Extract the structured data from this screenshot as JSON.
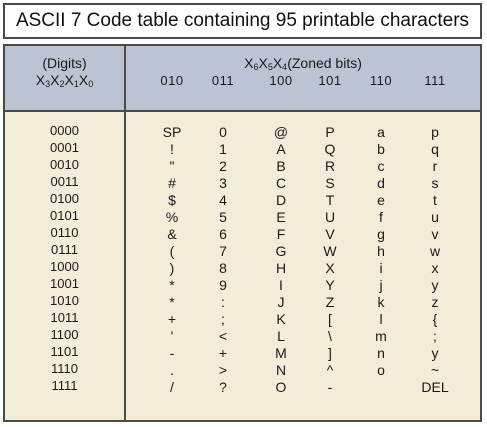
{
  "title": "ASCII 7 Code table containing 95 printable characters",
  "header": {
    "digits_line1": "(Digits)",
    "digits_line2": [
      "X",
      "3",
      "X",
      "2",
      "X",
      "1",
      "X",
      "0"
    ],
    "zoned": [
      "X",
      "6",
      "X",
      "5",
      "X",
      "4",
      "(Zoned bits)"
    ]
  },
  "zone_codes": [
    "010",
    "011",
    "100",
    "101",
    "110",
    "111"
  ],
  "digit_codes": [
    "0000",
    "0001",
    "0010",
    "0011",
    "0100",
    "0101",
    "0110",
    "0111",
    "1000",
    "1001",
    "1010",
    "1011",
    "1100",
    "1101",
    "1110",
    "1111"
  ],
  "columns": [
    [
      "SP",
      "!",
      "\"",
      "#",
      "$",
      "%",
      "&",
      "(",
      ")",
      "*",
      "*",
      "+",
      "'",
      "-",
      ".",
      "/"
    ],
    [
      "0",
      "1",
      "2",
      "3",
      "4",
      "5",
      "6",
      "7",
      "8",
      "9",
      ":",
      ";",
      "<",
      "+",
      ">",
      "?"
    ],
    [
      "@",
      "A",
      "B",
      "C",
      "D",
      "E",
      "F",
      "G",
      "H",
      "I",
      "J",
      "K",
      "L",
      "M",
      "N",
      "O"
    ],
    [
      "P",
      "Q",
      "R",
      "S",
      "T",
      "U",
      "V",
      "W",
      "X",
      "Y",
      "Z",
      "[",
      "\\",
      "]",
      "^",
      "-"
    ],
    [
      "a",
      "b",
      "c",
      "d",
      "e",
      "f",
      "g",
      "h",
      "i",
      "j",
      "k",
      "l",
      "m",
      "n",
      "o",
      ""
    ],
    [
      "p",
      "q",
      "r",
      "s",
      "t",
      "u",
      "v",
      "w",
      "x",
      "y",
      "z",
      "{",
      ";",
      "y",
      "~",
      "DEL"
    ]
  ],
  "colors": {
    "header_band": "#bcc4d3",
    "body_band": "#f3ecd9",
    "border": "#4a4a4a"
  }
}
